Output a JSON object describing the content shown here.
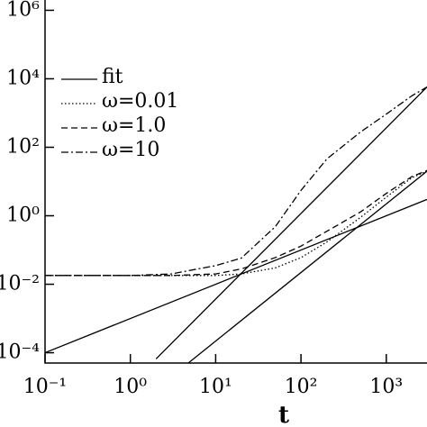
{
  "chart_data": {
    "type": "line",
    "x_label": "t",
    "log_x": true,
    "log_y": true,
    "xlim": [
      0.1,
      3000
    ],
    "ylim": [
      5e-05,
      2000000
    ],
    "xticks": [
      {
        "value": 0.1,
        "label": "10⁻¹"
      },
      {
        "value": 1,
        "label": "10⁰"
      },
      {
        "value": 10,
        "label": "10¹"
      },
      {
        "value": 100,
        "label": "10²"
      },
      {
        "value": 1000,
        "label": "10³"
      }
    ],
    "yticks": [
      {
        "value": 0.0001,
        "label": "10⁻⁴"
      },
      {
        "value": 0.01,
        "label": "10⁻²"
      },
      {
        "value": 1,
        "label": "10⁰"
      },
      {
        "value": 100,
        "label": "10²"
      },
      {
        "value": 10000,
        "label": "10⁴"
      },
      {
        "value": 1000000,
        "label": "10⁶"
      }
    ],
    "series": [
      {
        "name": "fit",
        "color": "#000000",
        "dash": "solid",
        "x": [
          0.1,
          3000
        ],
        "values": [
          0.0001,
          3
        ]
      },
      {
        "color": "#000000",
        "dash": "solid",
        "x": [
          2,
          3000
        ],
        "values": [
          6.6e-05,
          5750
        ]
      },
      {
        "color": "#000000",
        "dash": "solid",
        "x": [
          4,
          3000
        ],
        "values": [
          3.5e-05,
          20
        ]
      },
      {
        "name": "ω=0.01",
        "color": "#000000",
        "dash": "dotted",
        "x": [
          0.1,
          0.3,
          1,
          3,
          10,
          20,
          50,
          100,
          200,
          500,
          1000,
          2000,
          3000
        ],
        "values": [
          0.018,
          0.018,
          0.018,
          0.018,
          0.018,
          0.02,
          0.03,
          0.06,
          0.17,
          0.9,
          3.5,
          13,
          20
        ]
      },
      {
        "name": "ω=1.0",
        "color": "#000000",
        "dash": "dashed",
        "x": [
          0.1,
          0.3,
          1,
          3,
          10,
          20,
          50,
          100,
          200,
          500,
          1000,
          2000,
          3000
        ],
        "values": [
          0.018,
          0.018,
          0.018,
          0.018,
          0.02,
          0.028,
          0.06,
          0.13,
          0.35,
          1.3,
          4.5,
          14,
          21
        ]
      },
      {
        "name": "ω=10",
        "color": "#000000",
        "dash": "dashdot",
        "x": [
          0.1,
          0.3,
          1,
          3,
          10,
          20,
          50,
          100,
          200,
          500,
          1000,
          2000,
          3000
        ],
        "values": [
          0.018,
          0.018,
          0.018,
          0.02,
          0.035,
          0.058,
          0.48,
          5.5,
          45,
          280,
          930,
          3200,
          5750
        ]
      }
    ]
  }
}
